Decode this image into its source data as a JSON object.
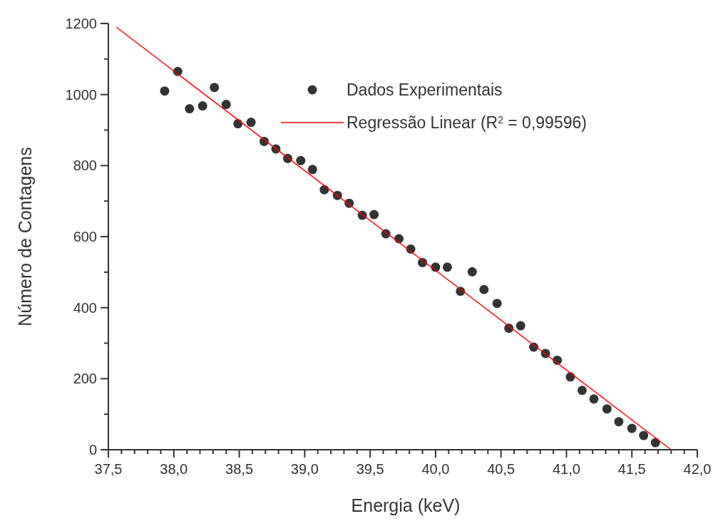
{
  "chart_data": {
    "type": "scatter",
    "xlabel": "Energia (keV)",
    "ylabel": "Número de Contagens",
    "legend": "top right",
    "xlim": [
      37.5,
      42.0
    ],
    "ylim": [
      0,
      1200
    ],
    "xticks": [
      {
        "value": 37.5,
        "label": "37,5"
      },
      {
        "value": 37.6,
        "label": null
      },
      {
        "value": 37.7,
        "label": null
      },
      {
        "value": 37.8,
        "label": null
      },
      {
        "value": 37.9,
        "label": null
      },
      {
        "value": 38.0,
        "label": "38,0"
      },
      {
        "value": 38.1,
        "label": null
      },
      {
        "value": 38.2,
        "label": null
      },
      {
        "value": 38.3,
        "label": null
      },
      {
        "value": 38.4,
        "label": null
      },
      {
        "value": 38.5,
        "label": "38,5"
      },
      {
        "value": 38.6,
        "label": null
      },
      {
        "value": 38.7,
        "label": null
      },
      {
        "value": 38.8,
        "label": null
      },
      {
        "value": 38.9,
        "label": null
      },
      {
        "value": 39.0,
        "label": "39,0"
      },
      {
        "value": 39.1,
        "label": null
      },
      {
        "value": 39.2,
        "label": null
      },
      {
        "value": 39.3,
        "label": null
      },
      {
        "value": 39.4,
        "label": null
      },
      {
        "value": 39.5,
        "label": "39,5"
      },
      {
        "value": 39.6,
        "label": null
      },
      {
        "value": 39.7,
        "label": null
      },
      {
        "value": 39.8,
        "label": null
      },
      {
        "value": 39.9,
        "label": null
      },
      {
        "value": 40.0,
        "label": "40,0"
      },
      {
        "value": 40.1,
        "label": null
      },
      {
        "value": 40.2,
        "label": null
      },
      {
        "value": 40.3,
        "label": null
      },
      {
        "value": 40.4,
        "label": null
      },
      {
        "value": 40.5,
        "label": "40,5"
      },
      {
        "value": 40.6,
        "label": null
      },
      {
        "value": 40.7,
        "label": null
      },
      {
        "value": 40.8,
        "label": null
      },
      {
        "value": 40.9,
        "label": null
      },
      {
        "value": 41.0,
        "label": "41,0"
      },
      {
        "value": 41.1,
        "label": null
      },
      {
        "value": 41.2,
        "label": null
      },
      {
        "value": 41.3,
        "label": null
      },
      {
        "value": 41.4,
        "label": null
      },
      {
        "value": 41.5,
        "label": "41,5"
      },
      {
        "value": 41.6,
        "label": null
      },
      {
        "value": 41.7,
        "label": null
      },
      {
        "value": 41.8,
        "label": null
      },
      {
        "value": 41.9,
        "label": null
      },
      {
        "value": 42.0,
        "label": "42,0"
      }
    ],
    "yticks": [
      0,
      {
        "value": 100,
        "label": null
      },
      200,
      {
        "value": 300,
        "label": null
      },
      400,
      {
        "value": 500,
        "label": null
      },
      600,
      {
        "value": 700,
        "label": null
      },
      800,
      {
        "value": 900,
        "label": null
      },
      1000,
      {
        "value": 1100,
        "label": null
      },
      1200
    ],
    "series": [
      {
        "name": "Dados Experimentais",
        "marker": "circle",
        "color": "#333333",
        "x": [
          37.93,
          38.03,
          38.12,
          38.22,
          38.31,
          38.4,
          38.49,
          38.59,
          38.69,
          38.78,
          38.87,
          38.97,
          39.06,
          39.15,
          39.25,
          39.34,
          39.44,
          39.53,
          39.62,
          39.72,
          39.81,
          39.9,
          40.0,
          40.09,
          40.19,
          40.28,
          40.37,
          40.47,
          40.56,
          40.65,
          40.75,
          40.84,
          40.93,
          41.03,
          41.12,
          41.21,
          41.31,
          41.4,
          41.5,
          41.59,
          41.68
        ],
        "values": [
          1010,
          1065,
          960,
          968,
          1020,
          972,
          918,
          922,
          868,
          847,
          820,
          814,
          789,
          732,
          716,
          694,
          660,
          662,
          608,
          594,
          565,
          527,
          514,
          514,
          446,
          501,
          451,
          412,
          342,
          349,
          289,
          271,
          252,
          205,
          167,
          143,
          115,
          79,
          60,
          40,
          20
        ]
      },
      {
        "name": "Regressão Linear (R$^{2}$ = 0,99596)",
        "type": "line",
        "marker": "none",
        "color": "#ff0000",
        "x": [
          37.56,
          41.8
        ],
        "values": [
          1190,
          0
        ]
      }
    ]
  }
}
